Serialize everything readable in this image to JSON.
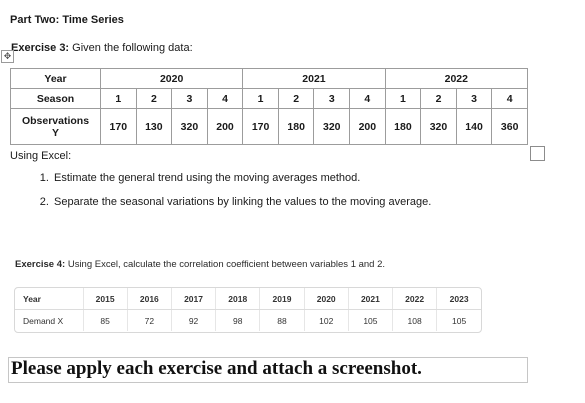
{
  "part_title": "Part Two: Time Series",
  "move_handle_glyph": "✥",
  "exercise3": {
    "label": "Exercise 3:",
    "text": " Given the following data:",
    "table": {
      "year_label": "Year",
      "season_label": "Season",
      "obs_label_line1": "Observations",
      "obs_label_line2": "Y",
      "years": [
        "2020",
        "2021",
        "2022"
      ],
      "seasons": [
        "1",
        "2",
        "3",
        "4",
        "1",
        "2",
        "3",
        "4",
        "1",
        "2",
        "3",
        "4"
      ],
      "observations": [
        "170",
        "130",
        "320",
        "200",
        "170",
        "180",
        "320",
        "200",
        "180",
        "320",
        "140",
        "360"
      ]
    },
    "using": "Using Excel:",
    "steps": [
      "Estimate the general trend using the moving averages method.",
      "Separate the seasonal variations by linking the values to the moving average."
    ]
  },
  "exercise4": {
    "label": "Exercise 4:",
    "text": " Using Excel, calculate the correlation coefficient between variables 1 and 2.",
    "table": {
      "row1_label": "Year",
      "row2_label": "Demand X",
      "years": [
        "2015",
        "2016",
        "2017",
        "2018",
        "2019",
        "2020",
        "2021",
        "2022",
        "2023"
      ],
      "demand": [
        "85",
        "72",
        "92",
        "98",
        "88",
        "102",
        "105",
        "108",
        "105"
      ]
    }
  },
  "closing": "Please apply each exercise and attach a screenshot."
}
